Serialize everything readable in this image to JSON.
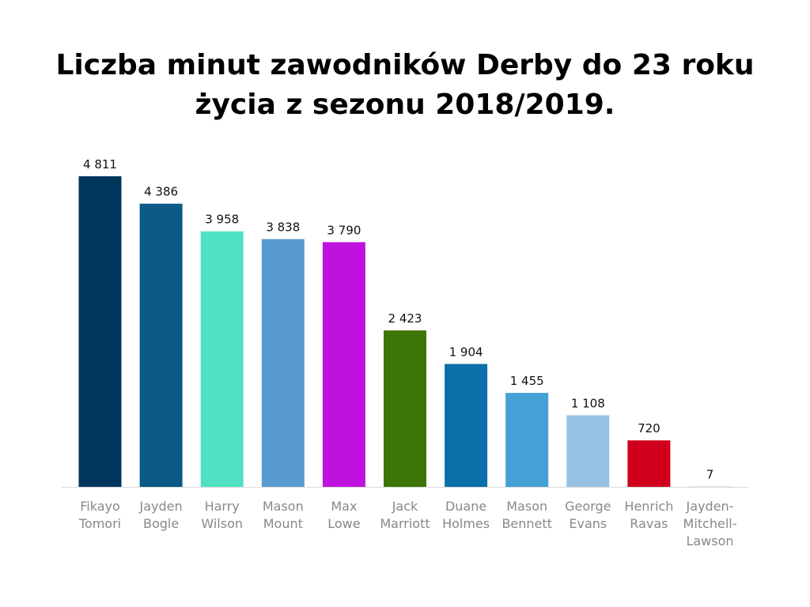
{
  "chart_data": {
    "type": "bar",
    "title": "Liczba minut zawodników Derby do 23 roku życia z sezonu 2018/2019.",
    "xlabel": "",
    "ylabel": "",
    "ylim": [
      0,
      4811
    ],
    "grid": false,
    "legend": "none",
    "categories": [
      "Fikayo Tomori",
      "Jayden Bogle",
      "Harry Wilson",
      "Mason Mount",
      "Max Lowe",
      "Jack Marriott",
      "Duane Holmes",
      "Mason Bennett",
      "George Evans",
      "Henrich Ravas",
      "Jayden-Mitchell-Lawson"
    ],
    "category_lines": [
      [
        "Fikayo",
        "Tomori"
      ],
      [
        "Jayden",
        "Bogle"
      ],
      [
        "Harry",
        "Wilson"
      ],
      [
        "Mason",
        "Mount"
      ],
      [
        "Max",
        "Lowe"
      ],
      [
        "Jack",
        "Marriott"
      ],
      [
        "Duane",
        "Holmes"
      ],
      [
        "Mason",
        "Bennett"
      ],
      [
        "George",
        "Evans"
      ],
      [
        "Henrich",
        "Ravas"
      ],
      [
        "Jayden-",
        "Mitchell-",
        "Lawson"
      ]
    ],
    "values": [
      4811,
      4386,
      3958,
      3838,
      3790,
      2423,
      1904,
      1455,
      1108,
      720,
      7
    ],
    "value_labels": [
      "4 811",
      "4 386",
      "3 958",
      "3 838",
      "3 790",
      "2 423",
      "1 904",
      "1 455",
      "1 108",
      "720",
      "7"
    ],
    "colors": [
      "#00365c",
      "#0b5a87",
      "#4fe1c4",
      "#5a9bcf",
      "#bf12df",
      "#3e7507",
      "#0c6fa9",
      "#45a1d5",
      "#96c1e2",
      "#d0001d",
      "#d9d9d9"
    ]
  }
}
